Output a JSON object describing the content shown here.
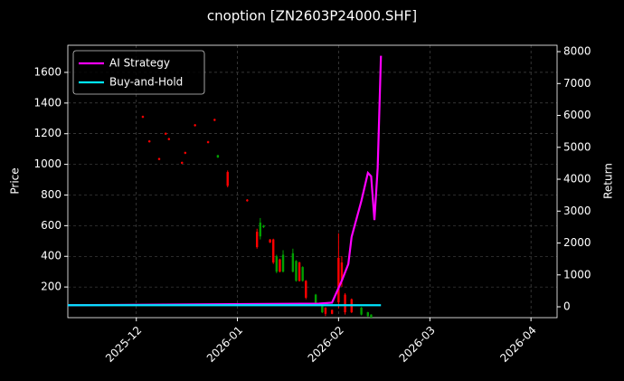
{
  "chart_data": {
    "type": "candlestick",
    "title": "cnoption [ZN2603P24000.SHF]",
    "y_label": "Price",
    "y2_label": "Return",
    "grid": true,
    "legend": "upper left",
    "up_color": "#00a000",
    "down_color": "#ff0000",
    "xlim": [
      "2025-11-10",
      "2026-04-09"
    ],
    "xticks": [
      {
        "value": "2025-12-01",
        "label": "2025-12"
      },
      {
        "value": "2026-01-01",
        "label": "2026-01"
      },
      {
        "value": "2026-02-01",
        "label": "2026-02"
      },
      {
        "value": "2026-03-01",
        "label": "2026-03"
      },
      {
        "value": "2026-04-01",
        "label": "2026-04"
      }
    ],
    "ylim": [
      0,
      1777
    ],
    "yticks": [
      200,
      400,
      600,
      800,
      1000,
      1200,
      1400,
      1600
    ],
    "y2lim": [
      -340,
      8200
    ],
    "y2ticks": [
      0,
      1000,
      2000,
      3000,
      4000,
      5000,
      6000,
      7000,
      8000
    ],
    "candles": {
      "x": [
        "2025-12-03",
        "2025-12-05",
        "2025-12-08",
        "2025-12-10",
        "2025-12-11",
        "2025-12-15",
        "2025-12-16",
        "2025-12-19",
        "2025-12-23",
        "2025-12-25",
        "2025-12-26",
        "2025-12-29",
        "2026-01-04",
        "2026-01-07",
        "2026-01-08",
        "2026-01-09",
        "2026-01-11",
        "2026-01-12",
        "2026-01-13",
        "2026-01-14",
        "2026-01-15",
        "2026-01-18",
        "2026-01-19",
        "2026-01-20",
        "2026-01-21",
        "2026-01-22",
        "2026-01-25",
        "2026-01-27",
        "2026-01-28",
        "2026-01-30",
        "2026-02-01",
        "2026-02-02",
        "2026-02-03",
        "2026-02-05",
        "2026-02-08",
        "2026-02-10",
        "2026-02-11"
      ],
      "open": [
        1315,
        1155,
        1040,
        1205,
        1170,
        1015,
        1080,
        1260,
        1150,
        1295,
        1045,
        950,
        770,
        560,
        530,
        590,
        510,
        510,
        300,
        380,
        300,
        300,
        240,
        360,
        240,
        240,
        90,
        35,
        65,
        50,
        390,
        360,
        150,
        120,
        20,
        10,
        0
      ],
      "high": [
        1318,
        1158,
        1043,
        1208,
        1173,
        1018,
        1083,
        1263,
        1153,
        1298,
        1062,
        960,
        773,
        580,
        650,
        605,
        513,
        515,
        410,
        385,
        440,
        450,
        375,
        365,
        335,
        245,
        155,
        80,
        68,
        53,
        550,
        400,
        160,
        125,
        70,
        38,
        22
      ],
      "low": [
        1302,
        1142,
        1027,
        1192,
        1157,
        1002,
        1067,
        1247,
        1137,
        1282,
        1042,
        850,
        757,
        450,
        510,
        585,
        487,
        350,
        290,
        295,
        295,
        295,
        235,
        235,
        235,
        120,
        85,
        30,
        10,
        22,
        60,
        200,
        20,
        30,
        15,
        5,
        0
      ],
      "close": [
        1305,
        1145,
        1030,
        1195,
        1160,
        1005,
        1070,
        1250,
        1140,
        1285,
        1060,
        860,
        760,
        460,
        620,
        600,
        490,
        360,
        400,
        300,
        410,
        420,
        370,
        240,
        330,
        130,
        150,
        75,
        25,
        25,
        100,
        240,
        35,
        35,
        65,
        35,
        20
      ]
    },
    "series": [
      {
        "name": "AI Strategy",
        "color": "#ff00ff",
        "axis": "y2",
        "x": [
          "2025-11-10",
          "2026-01-26",
          "2026-01-30",
          "2026-02-02",
          "2026-02-04",
          "2026-02-05",
          "2026-02-08",
          "2026-02-10",
          "2026-02-11",
          "2026-02-12",
          "2026-02-13",
          "2026-02-14"
        ],
        "values": [
          50,
          100,
          130,
          820,
          1340,
          2190,
          3320,
          4200,
          4090,
          2720,
          4350,
          7870
        ]
      },
      {
        "name": "Buy-and-Hold",
        "color": "#00e5ff",
        "axis": "y2",
        "x": [
          "2025-11-10",
          "2026-02-14"
        ],
        "values": [
          50,
          50
        ]
      }
    ]
  }
}
